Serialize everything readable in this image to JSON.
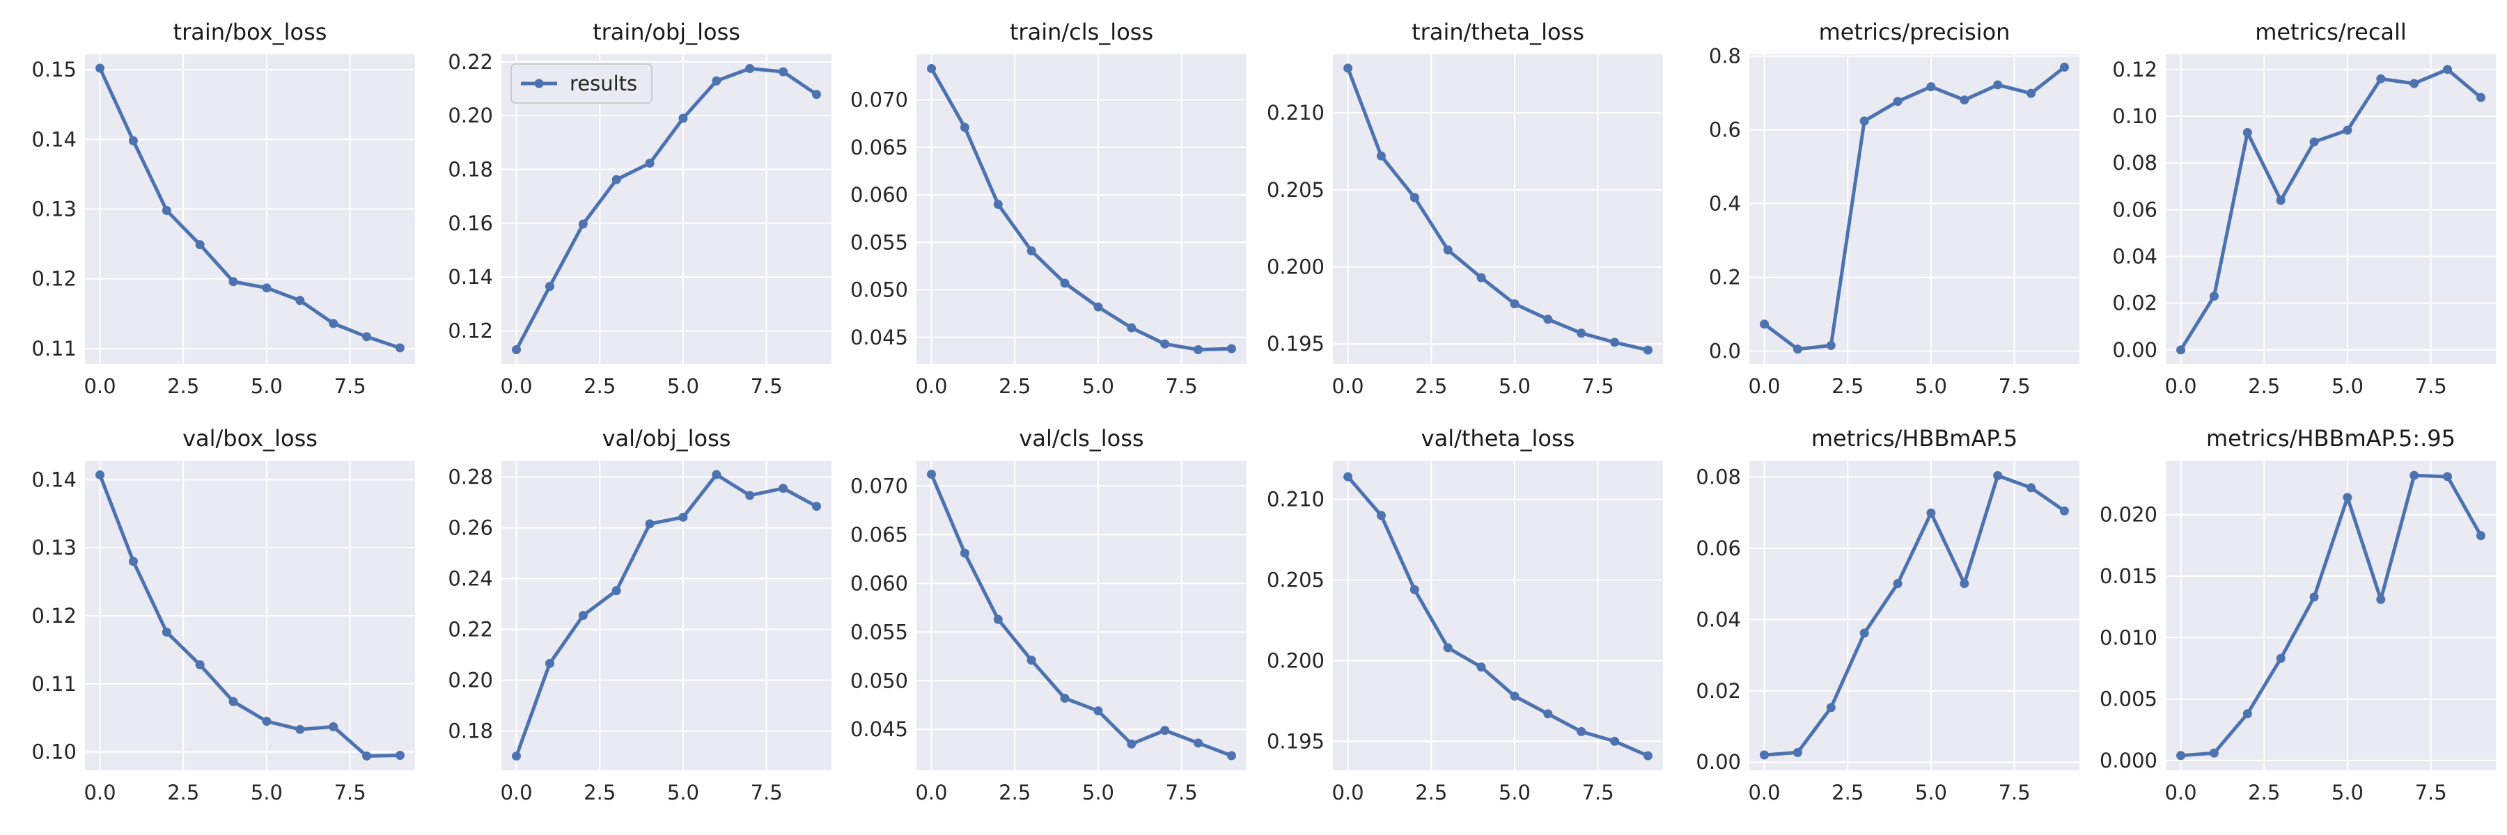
{
  "figure": {
    "background": "#ffffff",
    "panel_background": "#eaeaf2",
    "grid_color": "#ffffff",
    "line_color": "#4c72b0",
    "legend_label": "results"
  },
  "chart_data": [
    {
      "type": "line",
      "title": "train/box_loss",
      "grid": true,
      "legend_placement": "none",
      "x": [
        0,
        1,
        2,
        3,
        4,
        5,
        6,
        7,
        8,
        9
      ],
      "xticks": [
        0.0,
        2.5,
        5.0,
        7.5
      ],
      "xtick_labels": [
        "0.0",
        "2.5",
        "5.0",
        "7.5"
      ],
      "yticks": [
        0.11,
        0.12,
        0.13,
        0.14,
        0.15
      ],
      "ytick_labels": [
        "0.11",
        "0.12",
        "0.13",
        "0.14",
        "0.15"
      ],
      "xlim": [
        -0.45,
        9.45
      ],
      "ylim": [
        0.1078,
        0.1522
      ],
      "series": [
        {
          "name": "results",
          "values": [
            0.1502,
            0.1398,
            0.1298,
            0.1249,
            0.1196,
            0.1187,
            0.1169,
            0.1136,
            0.1117,
            0.1101
          ]
        }
      ]
    },
    {
      "type": "line",
      "title": "train/obj_loss",
      "grid": true,
      "legend_placement": "upper left",
      "x": [
        0,
        1,
        2,
        3,
        4,
        5,
        6,
        7,
        8,
        9
      ],
      "xticks": [
        0.0,
        2.5,
        5.0,
        7.5
      ],
      "xtick_labels": [
        "0.0",
        "2.5",
        "5.0",
        "7.5"
      ],
      "yticks": [
        0.12,
        0.14,
        0.16,
        0.18,
        0.2,
        0.22
      ],
      "ytick_labels": [
        "0.12",
        "0.14",
        "0.16",
        "0.18",
        "0.20",
        "0.22"
      ],
      "xlim": [
        -0.45,
        9.45
      ],
      "ylim": [
        0.1077,
        0.2228
      ],
      "series": [
        {
          "name": "results",
          "values": [
            0.113,
            0.1365,
            0.1597,
            0.1762,
            0.1823,
            0.199,
            0.2129,
            0.2175,
            0.2163,
            0.2079
          ]
        }
      ]
    },
    {
      "type": "line",
      "title": "train/cls_loss",
      "grid": true,
      "legend_placement": "none",
      "x": [
        0,
        1,
        2,
        3,
        4,
        5,
        6,
        7,
        8,
        9
      ],
      "xticks": [
        0.0,
        2.5,
        5.0,
        7.5
      ],
      "xtick_labels": [
        "0.0",
        "2.5",
        "5.0",
        "7.5"
      ],
      "yticks": [
        0.045,
        0.05,
        0.055,
        0.06,
        0.065,
        0.07
      ],
      "ytick_labels": [
        "0.045",
        "0.050",
        "0.055",
        "0.060",
        "0.065",
        "0.070"
      ],
      "xlim": [
        -0.45,
        9.45
      ],
      "ylim": [
        0.0422,
        0.0748
      ],
      "series": [
        {
          "name": "results",
          "values": [
            0.0733,
            0.0671,
            0.059,
            0.0541,
            0.0507,
            0.0482,
            0.046,
            0.0443,
            0.0437,
            0.0438
          ]
        }
      ]
    },
    {
      "type": "line",
      "title": "train/theta_loss",
      "grid": true,
      "legend_placement": "none",
      "x": [
        0,
        1,
        2,
        3,
        4,
        5,
        6,
        7,
        8,
        9
      ],
      "xticks": [
        0.0,
        2.5,
        5.0,
        7.5
      ],
      "xtick_labels": [
        "0.0",
        "2.5",
        "5.0",
        "7.5"
      ],
      "yticks": [
        0.195,
        0.2,
        0.205,
        0.21
      ],
      "ytick_labels": [
        "0.195",
        "0.200",
        "0.205",
        "0.210"
      ],
      "xlim": [
        -0.45,
        9.45
      ],
      "ylim": [
        0.1937,
        0.2138
      ],
      "series": [
        {
          "name": "results",
          "values": [
            0.2129,
            0.2072,
            0.2045,
            0.2011,
            0.1993,
            0.1976,
            0.1966,
            0.1957,
            0.1951,
            0.1946
          ]
        }
      ]
    },
    {
      "type": "line",
      "title": "metrics/precision",
      "grid": true,
      "legend_placement": "none",
      "x": [
        0,
        1,
        2,
        3,
        4,
        5,
        6,
        7,
        8,
        9
      ],
      "xticks": [
        0.0,
        2.5,
        5.0,
        7.5
      ],
      "xtick_labels": [
        "0.0",
        "2.5",
        "5.0",
        "7.5"
      ],
      "yticks": [
        0.0,
        0.2,
        0.4,
        0.6,
        0.8
      ],
      "ytick_labels": [
        "0.0",
        "0.2",
        "0.4",
        "0.6",
        "0.8"
      ],
      "xlim": [
        -0.45,
        9.45
      ],
      "ylim": [
        -0.035,
        0.805
      ],
      "series": [
        {
          "name": "results",
          "values": [
            0.073,
            0.005,
            0.015,
            0.624,
            0.677,
            0.717,
            0.681,
            0.722,
            0.699,
            0.77
          ]
        }
      ]
    },
    {
      "type": "line",
      "title": "metrics/recall",
      "grid": true,
      "legend_placement": "none",
      "x": [
        0,
        1,
        2,
        3,
        4,
        5,
        6,
        7,
        8,
        9
      ],
      "xticks": [
        0.0,
        2.5,
        5.0,
        7.5
      ],
      "xtick_labels": [
        "0.0",
        "2.5",
        "5.0",
        "7.5"
      ],
      "yticks": [
        0.0,
        0.02,
        0.04,
        0.06,
        0.08,
        0.1,
        0.12
      ],
      "ytick_labels": [
        "0.00",
        "0.02",
        "0.04",
        "0.06",
        "0.08",
        "0.10",
        "0.12"
      ],
      "xlim": [
        -0.45,
        9.45
      ],
      "ylim": [
        -0.006,
        0.1265
      ],
      "series": [
        {
          "name": "results",
          "values": [
            0.0,
            0.023,
            0.093,
            0.064,
            0.089,
            0.094,
            0.116,
            0.114,
            0.12,
            0.108
          ]
        }
      ]
    },
    {
      "type": "line",
      "title": "val/box_loss",
      "grid": true,
      "legend_placement": "none",
      "x": [
        0,
        1,
        2,
        3,
        4,
        5,
        6,
        7,
        8,
        9
      ],
      "xticks": [
        0.0,
        2.5,
        5.0,
        7.5
      ],
      "xtick_labels": [
        "0.0",
        "2.5",
        "5.0",
        "7.5"
      ],
      "yticks": [
        0.1,
        0.11,
        0.12,
        0.13,
        0.14
      ],
      "ytick_labels": [
        "0.10",
        "0.11",
        "0.12",
        "0.13",
        "0.14"
      ],
      "xlim": [
        -0.45,
        9.45
      ],
      "ylim": [
        0.0973,
        0.1428
      ],
      "series": [
        {
          "name": "results",
          "values": [
            0.1407,
            0.128,
            0.1176,
            0.1128,
            0.1074,
            0.1045,
            0.1033,
            0.1037,
            0.0994,
            0.0995
          ]
        }
      ]
    },
    {
      "type": "line",
      "title": "val/obj_loss",
      "grid": true,
      "legend_placement": "none",
      "x": [
        0,
        1,
        2,
        3,
        4,
        5,
        6,
        7,
        8,
        9
      ],
      "xticks": [
        0.0,
        2.5,
        5.0,
        7.5
      ],
      "xtick_labels": [
        "0.0",
        "2.5",
        "5.0",
        "7.5"
      ],
      "yticks": [
        0.18,
        0.2,
        0.22,
        0.24,
        0.26,
        0.28
      ],
      "ytick_labels": [
        "0.18",
        "0.20",
        "0.22",
        "0.24",
        "0.26",
        "0.28"
      ],
      "xlim": [
        -0.45,
        9.45
      ],
      "ylim": [
        0.1645,
        0.2865
      ],
      "series": [
        {
          "name": "results",
          "values": [
            0.1701,
            0.2066,
            0.2255,
            0.2353,
            0.2616,
            0.2642,
            0.281,
            0.2728,
            0.2756,
            0.2685
          ]
        }
      ]
    },
    {
      "type": "line",
      "title": "val/cls_loss",
      "grid": true,
      "legend_placement": "none",
      "x": [
        0,
        1,
        2,
        3,
        4,
        5,
        6,
        7,
        8,
        9
      ],
      "xticks": [
        0.0,
        2.5,
        5.0,
        7.5
      ],
      "xtick_labels": [
        "0.0",
        "2.5",
        "5.0",
        "7.5"
      ],
      "yticks": [
        0.045,
        0.05,
        0.055,
        0.06,
        0.065,
        0.07
      ],
      "ytick_labels": [
        "0.045",
        "0.050",
        "0.055",
        "0.060",
        "0.065",
        "0.070"
      ],
      "xlim": [
        -0.45,
        9.45
      ],
      "ylim": [
        0.0408,
        0.0726
      ],
      "series": [
        {
          "name": "results",
          "values": [
            0.0712,
            0.0631,
            0.0563,
            0.0521,
            0.0482,
            0.0469,
            0.0435,
            0.0449,
            0.0436,
            0.0423
          ]
        }
      ]
    },
    {
      "type": "line",
      "title": "val/theta_loss",
      "grid": true,
      "legend_placement": "none",
      "x": [
        0,
        1,
        2,
        3,
        4,
        5,
        6,
        7,
        8,
        9
      ],
      "xticks": [
        0.0,
        2.5,
        5.0,
        7.5
      ],
      "xtick_labels": [
        "0.0",
        "2.5",
        "5.0",
        "7.5"
      ],
      "yticks": [
        0.195,
        0.2,
        0.205,
        0.21
      ],
      "ytick_labels": [
        "0.195",
        "0.200",
        "0.205",
        "0.210"
      ],
      "xlim": [
        -0.45,
        9.45
      ],
      "ylim": [
        0.1932,
        0.2124
      ],
      "series": [
        {
          "name": "results",
          "values": [
            0.2114,
            0.209,
            0.2044,
            0.2008,
            0.1996,
            0.1978,
            0.1967,
            0.1956,
            0.195,
            0.1941
          ]
        }
      ]
    },
    {
      "type": "line",
      "title": "metrics/HBBmAP.5",
      "grid": true,
      "legend_placement": "none",
      "x": [
        0,
        1,
        2,
        3,
        4,
        5,
        6,
        7,
        8,
        9
      ],
      "xticks": [
        0.0,
        2.5,
        5.0,
        7.5
      ],
      "xtick_labels": [
        "0.0",
        "2.5",
        "5.0",
        "7.5"
      ],
      "yticks": [
        0.0,
        0.02,
        0.04,
        0.06,
        0.08
      ],
      "ytick_labels": [
        "0.00",
        "0.02",
        "0.04",
        "0.06",
        "0.08"
      ],
      "xlim": [
        -0.45,
        9.45
      ],
      "ylim": [
        -0.0023,
        0.0846
      ],
      "series": [
        {
          "name": "results",
          "values": [
            0.002,
            0.0027,
            0.0153,
            0.0362,
            0.0501,
            0.0699,
            0.0501,
            0.0804,
            0.077,
            0.0705
          ]
        }
      ]
    },
    {
      "type": "line",
      "title": "metrics/HBBmAP.5:.95",
      "grid": true,
      "legend_placement": "none",
      "x": [
        0,
        1,
        2,
        3,
        4,
        5,
        6,
        7,
        8,
        9
      ],
      "xticks": [
        0.0,
        2.5,
        5.0,
        7.5
      ],
      "xtick_labels": [
        "0.0",
        "2.5",
        "5.0",
        "7.5"
      ],
      "yticks": [
        0.0,
        0.005,
        0.01,
        0.015,
        0.02
      ],
      "ytick_labels": [
        "0.000",
        "0.005",
        "0.010",
        "0.015",
        "0.020"
      ],
      "xlim": [
        -0.45,
        9.45
      ],
      "ylim": [
        -0.0008,
        0.0244
      ],
      "series": [
        {
          "name": "results",
          "values": [
            0.0004,
            0.0006,
            0.0038,
            0.0083,
            0.0133,
            0.0214,
            0.0131,
            0.0232,
            0.0231,
            0.0183
          ]
        }
      ]
    }
  ]
}
